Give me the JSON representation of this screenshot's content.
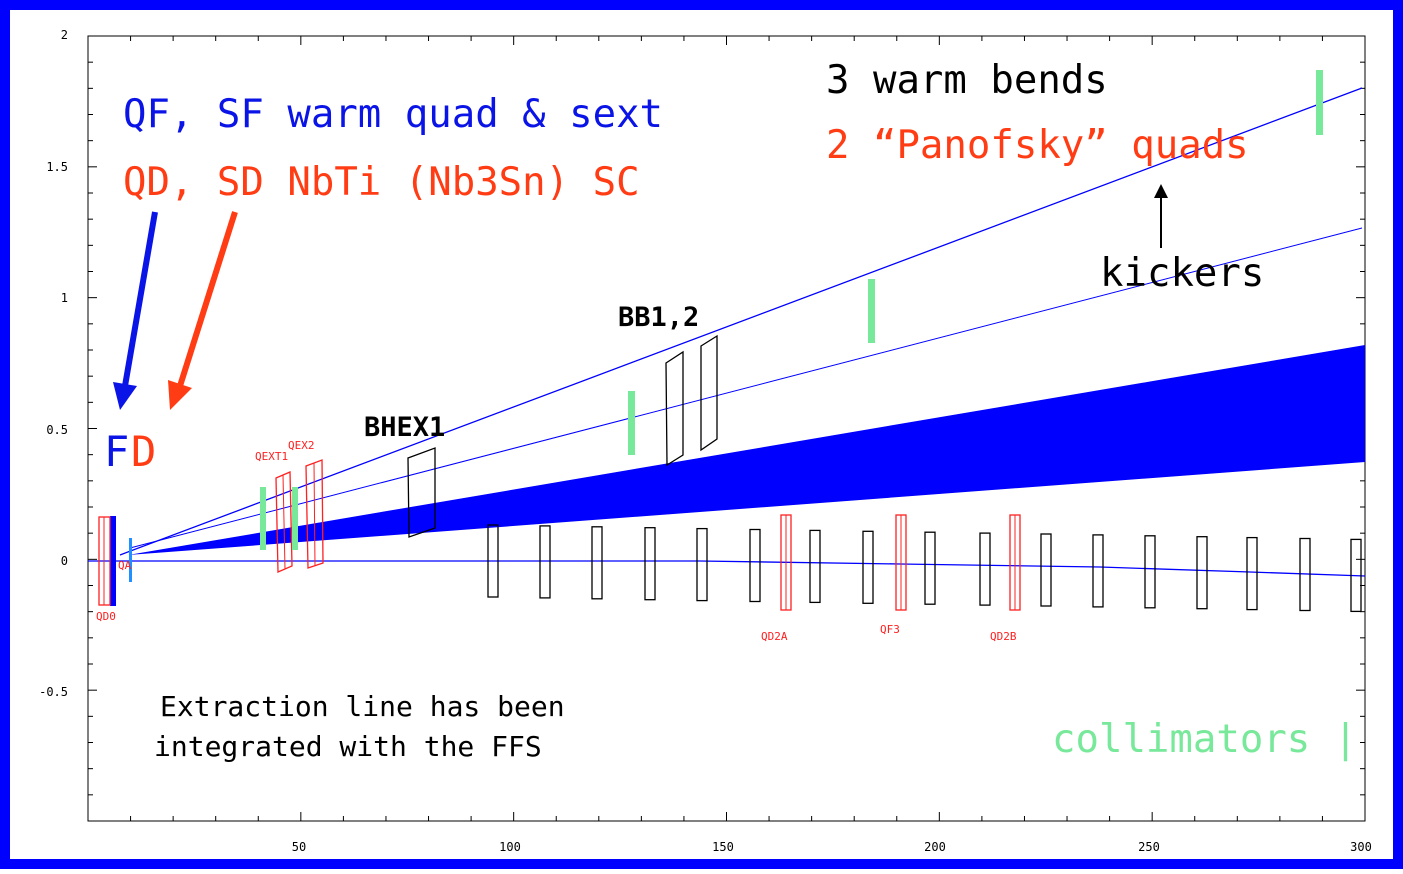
{
  "plot": {
    "xlim": [
      0,
      300
    ],
    "ylim": [
      -1,
      2
    ],
    "x_ticks": [
      "50",
      "100",
      "150",
      "200",
      "250",
      "300"
    ],
    "y_ticks": [
      "2",
      "1.5",
      "1",
      "0.5",
      "0",
      "-0.5"
    ]
  },
  "annotations": {
    "warm_quad": "QF, SF warm quad & sext",
    "sc_quad": "QD, SD NbTi (Nb3Sn) SC",
    "fd_f": "F",
    "fd_d": "D",
    "warm_bends": "3  warm bends",
    "panofsky": "2 “Panofsky” quads",
    "kickers": "kickers",
    "bb": "BB1,2",
    "bhex": "BHEX1",
    "extraction_1": "Extraction line has been",
    "extraction_2": "integrated with the FFS",
    "collimators": "collimators |"
  },
  "magnet_labels": {
    "qd0": "QD0",
    "qext1": "QEXT1",
    "qex2": "QEX2",
    "qd2a": "QD2A",
    "qf3": "QF3",
    "qd2b": "QD2B"
  },
  "colors": {
    "border": "#0000ff",
    "blue_text": "#0a14e6",
    "orange_text": "#ff3c14",
    "collimator": "#78e89a",
    "beam": "#0000ff",
    "magnet_red": "#ff2020"
  }
}
